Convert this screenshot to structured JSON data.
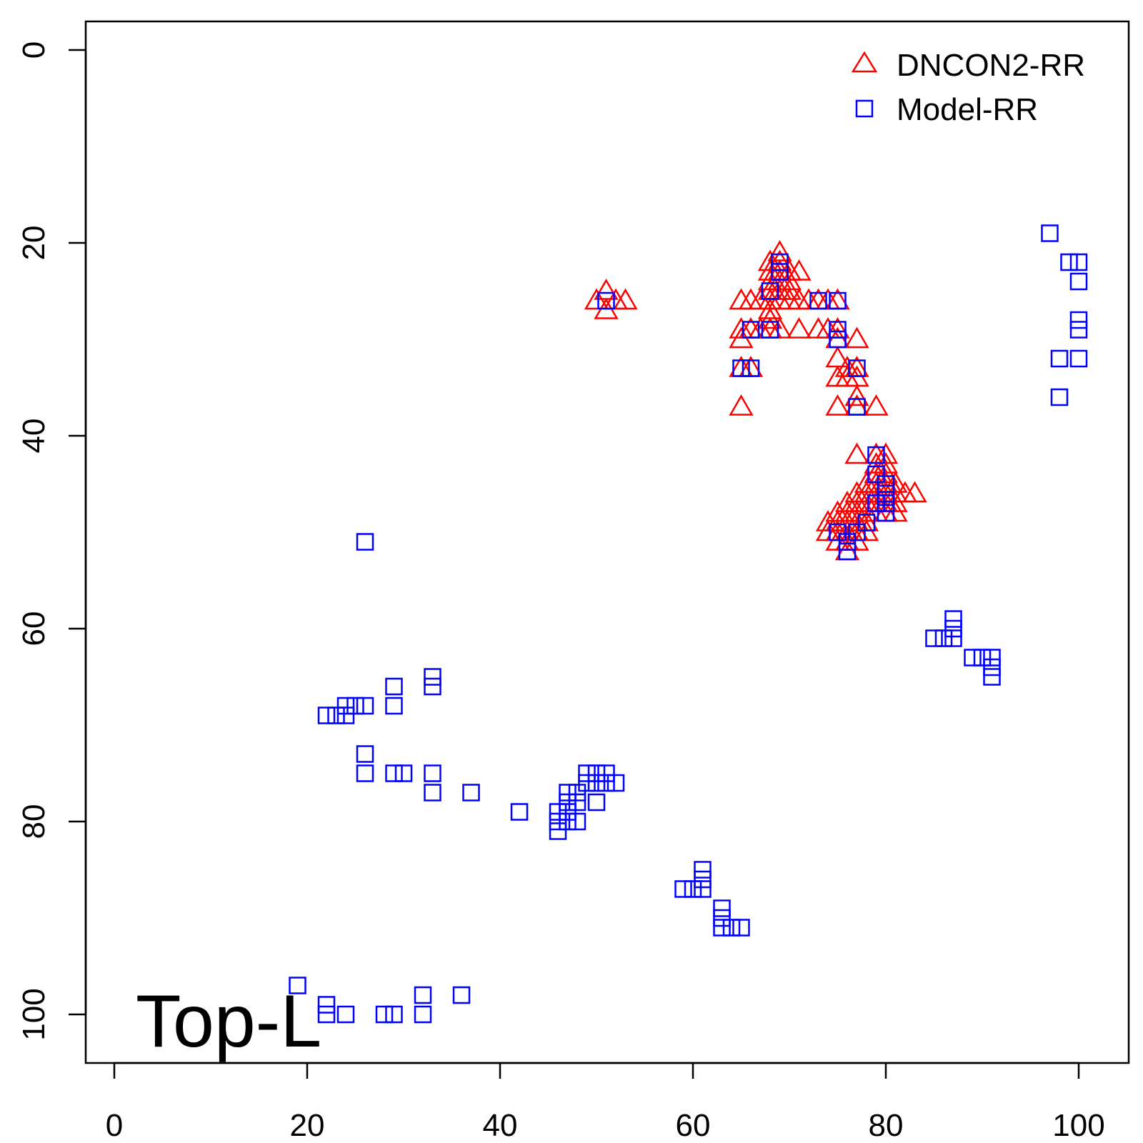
{
  "chart_data": {
    "type": "scatter",
    "title": "",
    "xlabel": "",
    "ylabel": "",
    "xlim": [
      -3,
      105
    ],
    "ylim": [
      105,
      -3
    ],
    "y_reversed": true,
    "grid": false,
    "legend_position": "top-right",
    "x_ticks": [
      "0",
      "20",
      "40",
      "60",
      "80",
      "100"
    ],
    "y_ticks": [
      "0",
      "20",
      "40",
      "60",
      "80",
      "100"
    ],
    "panel_label": "Top-L",
    "series": [
      {
        "name": "DNCON2-RR",
        "marker": "triangle",
        "color": "#ff0000",
        "points": [
          [
            50,
            26
          ],
          [
            51,
            25
          ],
          [
            51,
            27
          ],
          [
            52,
            26
          ],
          [
            53,
            26
          ],
          [
            65,
            26
          ],
          [
            66,
            26
          ],
          [
            67,
            26
          ],
          [
            68,
            26
          ],
          [
            69,
            26
          ],
          [
            70,
            26
          ],
          [
            71,
            26
          ],
          [
            72,
            26
          ],
          [
            73,
            26
          ],
          [
            74,
            26
          ],
          [
            75,
            26
          ],
          [
            65,
            29
          ],
          [
            65,
            30
          ],
          [
            66,
            29
          ],
          [
            67,
            29
          ],
          [
            68,
            29
          ],
          [
            69,
            29
          ],
          [
            71,
            29
          ],
          [
            73,
            29
          ],
          [
            74,
            29
          ],
          [
            75,
            29
          ],
          [
            75,
            30
          ],
          [
            68,
            22
          ],
          [
            68,
            23
          ],
          [
            68,
            24
          ],
          [
            68,
            25
          ],
          [
            68,
            27
          ],
          [
            68,
            28
          ],
          [
            69,
            21
          ],
          [
            69,
            22
          ],
          [
            69,
            23
          ],
          [
            69,
            24
          ],
          [
            69,
            25
          ],
          [
            70,
            23
          ],
          [
            70,
            24
          ],
          [
            70,
            25
          ],
          [
            71,
            23
          ],
          [
            65,
            33
          ],
          [
            66,
            33
          ],
          [
            65,
            37
          ],
          [
            75,
            32
          ],
          [
            75,
            34
          ],
          [
            75,
            37
          ],
          [
            76,
            33
          ],
          [
            76,
            34
          ],
          [
            77,
            30
          ],
          [
            77,
            33
          ],
          [
            77,
            34
          ],
          [
            77,
            36
          ],
          [
            77,
            37
          ],
          [
            79,
            37
          ],
          [
            77,
            42
          ],
          [
            79,
            42
          ],
          [
            80,
            42
          ],
          [
            79,
            43
          ],
          [
            80,
            43
          ],
          [
            79,
            44
          ],
          [
            80,
            44
          ],
          [
            78,
            45
          ],
          [
            79,
            45
          ],
          [
            80,
            45
          ],
          [
            81,
            45
          ],
          [
            77,
            46
          ],
          [
            78,
            46
          ],
          [
            79,
            46
          ],
          [
            80,
            46
          ],
          [
            81,
            46
          ],
          [
            82,
            46
          ],
          [
            83,
            46
          ],
          [
            76,
            47
          ],
          [
            77,
            47
          ],
          [
            78,
            47
          ],
          [
            79,
            47
          ],
          [
            80,
            47
          ],
          [
            81,
            47
          ],
          [
            75,
            48
          ],
          [
            76,
            48
          ],
          [
            77,
            48
          ],
          [
            78,
            48
          ],
          [
            79,
            48
          ],
          [
            80,
            48
          ],
          [
            81,
            48
          ],
          [
            74,
            49
          ],
          [
            75,
            49
          ],
          [
            76,
            49
          ],
          [
            77,
            49
          ],
          [
            78,
            49
          ],
          [
            74,
            50
          ],
          [
            75,
            50
          ],
          [
            76,
            50
          ],
          [
            77,
            50
          ],
          [
            78,
            50
          ],
          [
            75,
            51
          ],
          [
            76,
            51
          ],
          [
            77,
            51
          ],
          [
            76,
            52
          ]
        ]
      },
      {
        "name": "Model-RR",
        "marker": "square",
        "color": "#0000ff",
        "points": [
          [
            51,
            26
          ],
          [
            69,
            22
          ],
          [
            69,
            23
          ],
          [
            68,
            25
          ],
          [
            73,
            26
          ],
          [
            75,
            26
          ],
          [
            66,
            29
          ],
          [
            68,
            29
          ],
          [
            75,
            29
          ],
          [
            75,
            30
          ],
          [
            65,
            33
          ],
          [
            66,
            33
          ],
          [
            77,
            33
          ],
          [
            77,
            37
          ],
          [
            79,
            42
          ],
          [
            79,
            44
          ],
          [
            80,
            45
          ],
          [
            80,
            46
          ],
          [
            79,
            47
          ],
          [
            80,
            47
          ],
          [
            80,
            48
          ],
          [
            78,
            49
          ],
          [
            77,
            50
          ],
          [
            75,
            50
          ],
          [
            76,
            51
          ],
          [
            76,
            52
          ],
          [
            97,
            19
          ],
          [
            99,
            22
          ],
          [
            100,
            22
          ],
          [
            100,
            24
          ],
          [
            100,
            28
          ],
          [
            100,
            29
          ],
          [
            98,
            32
          ],
          [
            100,
            32
          ],
          [
            98,
            36
          ],
          [
            26,
            51
          ],
          [
            87,
            59
          ],
          [
            87,
            60
          ],
          [
            85,
            61
          ],
          [
            86,
            61
          ],
          [
            87,
            61
          ],
          [
            89,
            63
          ],
          [
            90,
            63
          ],
          [
            91,
            63
          ],
          [
            91,
            64
          ],
          [
            91,
            65
          ],
          [
            33,
            65
          ],
          [
            33,
            66
          ],
          [
            29,
            66
          ],
          [
            29,
            68
          ],
          [
            24,
            68
          ],
          [
            25,
            68
          ],
          [
            26,
            68
          ],
          [
            22,
            69
          ],
          [
            23,
            69
          ],
          [
            24,
            69
          ],
          [
            26,
            73
          ],
          [
            26,
            75
          ],
          [
            29,
            75
          ],
          [
            30,
            75
          ],
          [
            33,
            75
          ],
          [
            33,
            77
          ],
          [
            37,
            77
          ],
          [
            49,
            75
          ],
          [
            50,
            75
          ],
          [
            51,
            75
          ],
          [
            49,
            76
          ],
          [
            50,
            76
          ],
          [
            51,
            76
          ],
          [
            52,
            76
          ],
          [
            47,
            77
          ],
          [
            48,
            77
          ],
          [
            47,
            78
          ],
          [
            48,
            78
          ],
          [
            50,
            78
          ],
          [
            42,
            79
          ],
          [
            46,
            79
          ],
          [
            47,
            79
          ],
          [
            46,
            80
          ],
          [
            47,
            80
          ],
          [
            48,
            80
          ],
          [
            46,
            81
          ],
          [
            61,
            85
          ],
          [
            61,
            86
          ],
          [
            59,
            87
          ],
          [
            60,
            87
          ],
          [
            61,
            87
          ],
          [
            63,
            89
          ],
          [
            63,
            90
          ],
          [
            63,
            91
          ],
          [
            64,
            91
          ],
          [
            65,
            91
          ],
          [
            19,
            97
          ],
          [
            22,
            99
          ],
          [
            32,
            98
          ],
          [
            36,
            98
          ],
          [
            22,
            100
          ],
          [
            24,
            100
          ],
          [
            28,
            100
          ],
          [
            29,
            100
          ],
          [
            32,
            100
          ]
        ]
      }
    ]
  }
}
